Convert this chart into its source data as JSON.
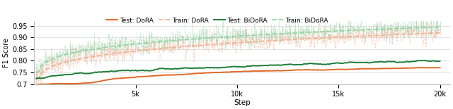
{
  "xlabel": "Step",
  "ylabel": "F1 Score",
  "xlim": [
    0,
    20500
  ],
  "ylim": [
    0.7,
    0.97
  ],
  "yticks": [
    0.7,
    0.75,
    0.8,
    0.85,
    0.9,
    0.95
  ],
  "xticks": [
    5000,
    10000,
    15000,
    20000
  ],
  "xticklabels": [
    "5k",
    "10k",
    "15k",
    "20k"
  ],
  "color_dora": "#e06828",
  "color_bidora": "#1e7d3a",
  "color_dora_train_light": "#f0b090",
  "color_bidora_train_light": "#90d0a0",
  "legend_entries": [
    "Test: DoRA",
    "Train: DoRA",
    "Test: BiDoRA",
    "Train: BiDoRA"
  ],
  "figsize": [
    6.4,
    1.55
  ],
  "dpi": 100
}
